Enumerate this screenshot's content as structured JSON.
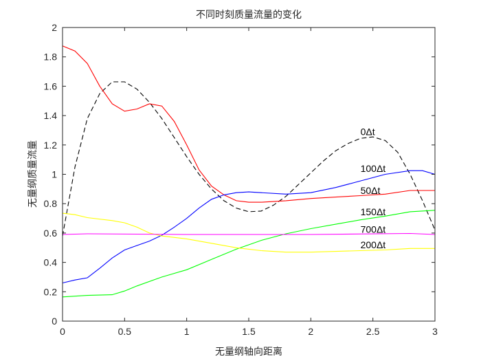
{
  "chart_data": {
    "type": "line",
    "title": "不同时刻质量流量的变化",
    "xlabel": "无量纲轴向距离",
    "ylabel": "无量纲质量流量",
    "xlim": [
      0,
      3
    ],
    "ylim": [
      0,
      2
    ],
    "xticks": [
      "0",
      "0.5",
      "1",
      "1.5",
      "2",
      "2.5",
      "3"
    ],
    "yticks": [
      "0",
      "0.2",
      "0.4",
      "0.6",
      "0.8",
      "1",
      "1.2",
      "1.4",
      "1.6",
      "1.8",
      "2"
    ],
    "grid": false,
    "legend": "inline annotations",
    "series": [
      {
        "name": "0Δt",
        "color": "#000000",
        "dash": true,
        "points": [
          [
            0,
            0.58
          ],
          [
            0.1,
            1.05
          ],
          [
            0.2,
            1.38
          ],
          [
            0.3,
            1.55
          ],
          [
            0.4,
            1.63
          ],
          [
            0.5,
            1.63
          ],
          [
            0.6,
            1.58
          ],
          [
            0.7,
            1.49
          ],
          [
            0.8,
            1.38
          ],
          [
            0.9,
            1.25
          ],
          [
            1.0,
            1.12
          ],
          [
            1.1,
            1.0
          ],
          [
            1.2,
            0.9
          ],
          [
            1.3,
            0.82
          ],
          [
            1.4,
            0.77
          ],
          [
            1.5,
            0.745
          ],
          [
            1.6,
            0.75
          ],
          [
            1.7,
            0.79
          ],
          [
            1.8,
            0.85
          ],
          [
            1.9,
            0.93
          ],
          [
            2.0,
            1.01
          ],
          [
            2.1,
            1.09
          ],
          [
            2.2,
            1.16
          ],
          [
            2.3,
            1.21
          ],
          [
            2.4,
            1.245
          ],
          [
            2.5,
            1.255
          ],
          [
            2.6,
            1.23
          ],
          [
            2.7,
            1.15
          ],
          [
            2.8,
            1.0
          ],
          [
            2.9,
            0.82
          ],
          [
            3.0,
            0.62
          ]
        ]
      },
      {
        "name": "50Δt",
        "color": "#ff0000",
        "dash": false,
        "points": [
          [
            0,
            1.875
          ],
          [
            0.1,
            1.84
          ],
          [
            0.2,
            1.755
          ],
          [
            0.3,
            1.6
          ],
          [
            0.4,
            1.48
          ],
          [
            0.5,
            1.43
          ],
          [
            0.6,
            1.445
          ],
          [
            0.7,
            1.48
          ],
          [
            0.8,
            1.465
          ],
          [
            0.9,
            1.36
          ],
          [
            1.0,
            1.2
          ],
          [
            1.1,
            1.03
          ],
          [
            1.2,
            0.92
          ],
          [
            1.3,
            0.86
          ],
          [
            1.4,
            0.82
          ],
          [
            1.5,
            0.81
          ],
          [
            1.6,
            0.81
          ],
          [
            1.8,
            0.82
          ],
          [
            2.0,
            0.835
          ],
          [
            2.2,
            0.845
          ],
          [
            2.4,
            0.855
          ],
          [
            2.6,
            0.865
          ],
          [
            2.8,
            0.89
          ],
          [
            3.0,
            0.89
          ]
        ]
      },
      {
        "name": "100Δt",
        "color": "#0000ff",
        "dash": false,
        "points": [
          [
            0,
            0.26
          ],
          [
            0.1,
            0.28
          ],
          [
            0.2,
            0.295
          ],
          [
            0.3,
            0.36
          ],
          [
            0.4,
            0.43
          ],
          [
            0.5,
            0.485
          ],
          [
            0.6,
            0.515
          ],
          [
            0.7,
            0.545
          ],
          [
            0.8,
            0.585
          ],
          [
            0.9,
            0.64
          ],
          [
            1.0,
            0.7
          ],
          [
            1.1,
            0.77
          ],
          [
            1.2,
            0.83
          ],
          [
            1.3,
            0.86
          ],
          [
            1.4,
            0.875
          ],
          [
            1.5,
            0.88
          ],
          [
            1.6,
            0.875
          ],
          [
            1.8,
            0.865
          ],
          [
            2.0,
            0.875
          ],
          [
            2.2,
            0.91
          ],
          [
            2.4,
            0.955
          ],
          [
            2.6,
            1.0
          ],
          [
            2.8,
            1.025
          ],
          [
            2.9,
            1.025
          ],
          [
            3.0,
            1.0
          ]
        ]
      },
      {
        "name": "150Δt",
        "color": "#00ff00",
        "dash": false,
        "points": [
          [
            0,
            0.165
          ],
          [
            0.2,
            0.175
          ],
          [
            0.4,
            0.18
          ],
          [
            0.5,
            0.205
          ],
          [
            0.6,
            0.24
          ],
          [
            0.8,
            0.3
          ],
          [
            1.0,
            0.35
          ],
          [
            1.2,
            0.42
          ],
          [
            1.4,
            0.49
          ],
          [
            1.6,
            0.55
          ],
          [
            1.8,
            0.595
          ],
          [
            2.0,
            0.63
          ],
          [
            2.2,
            0.66
          ],
          [
            2.4,
            0.69
          ],
          [
            2.6,
            0.715
          ],
          [
            2.8,
            0.745
          ],
          [
            3.0,
            0.755
          ]
        ]
      },
      {
        "name": "200Δt",
        "color": "#ffff00",
        "dash": false,
        "points": [
          [
            0,
            0.735
          ],
          [
            0.1,
            0.725
          ],
          [
            0.2,
            0.705
          ],
          [
            0.4,
            0.685
          ],
          [
            0.5,
            0.67
          ],
          [
            0.6,
            0.64
          ],
          [
            0.7,
            0.6
          ],
          [
            0.8,
            0.58
          ],
          [
            1.0,
            0.56
          ],
          [
            1.2,
            0.53
          ],
          [
            1.4,
            0.5
          ],
          [
            1.6,
            0.48
          ],
          [
            1.8,
            0.47
          ],
          [
            2.0,
            0.47
          ],
          [
            2.2,
            0.475
          ],
          [
            2.4,
            0.48
          ],
          [
            2.6,
            0.485
          ],
          [
            2.8,
            0.495
          ],
          [
            3.0,
            0.495
          ]
        ]
      },
      {
        "name": "700Δt",
        "color": "#ff00ff",
        "dash": false,
        "points": [
          [
            0,
            0.59
          ],
          [
            0.2,
            0.595
          ],
          [
            1.0,
            0.59
          ],
          [
            2.0,
            0.59
          ],
          [
            2.8,
            0.597
          ],
          [
            3.0,
            0.59
          ]
        ]
      }
    ],
    "annotations": [
      {
        "text": "0Δt",
        "x": 2.4,
        "y": 1.29
      },
      {
        "text": "100Δt",
        "x": 2.4,
        "y": 1.04
      },
      {
        "text": "50Δt",
        "x": 2.4,
        "y": 0.89
      },
      {
        "text": "150Δt",
        "x": 2.4,
        "y": 0.745
      },
      {
        "text": "700Δt",
        "x": 2.4,
        "y": 0.625
      },
      {
        "text": "200Δt",
        "x": 2.4,
        "y": 0.52
      }
    ]
  }
}
